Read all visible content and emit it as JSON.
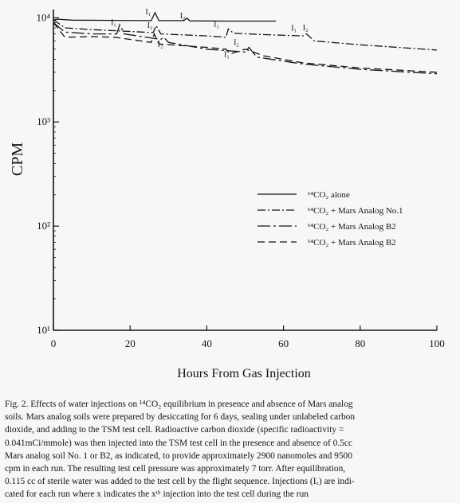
{
  "chart_data": {
    "type": "line",
    "ylabel": "CPM",
    "xlabel": "Hours From Gas Injection",
    "xlim": [
      0,
      100
    ],
    "ylog": true,
    "ylim": [
      10,
      12000
    ],
    "x_ticks": [
      0,
      20,
      40,
      60,
      80,
      100
    ],
    "x_tick_labels": [
      "0",
      "20",
      "40",
      "60",
      "80",
      "100"
    ],
    "y_ticks": [
      10,
      100,
      1000,
      10000
    ],
    "y_tick_labels": [
      "10¹",
      "10²",
      "10³",
      "10⁴"
    ],
    "legend_position": "right-middle",
    "grid": false,
    "series": [
      {
        "name": "¹⁴CO₂ alone",
        "style": "solid",
        "points": [
          [
            0,
            9500
          ],
          [
            1,
            9700
          ],
          [
            5,
            9500
          ],
          [
            15,
            9450
          ],
          [
            25.5,
            9400
          ],
          [
            26.5,
            11200
          ],
          [
            27.5,
            9400
          ],
          [
            34,
            9400
          ],
          [
            34.8,
            9900
          ],
          [
            35.6,
            9350
          ],
          [
            45,
            9300
          ],
          [
            58,
            9300
          ]
        ]
      },
      {
        "name": "¹⁴CO₂ + Mars Analog No.1",
        "style": "dashdot",
        "points": [
          [
            0,
            9600
          ],
          [
            3,
            8000
          ],
          [
            10,
            7700
          ],
          [
            20,
            7400
          ],
          [
            26,
            7200
          ],
          [
            26.8,
            8400
          ],
          [
            28,
            7000
          ],
          [
            40,
            6700
          ],
          [
            45,
            6500
          ],
          [
            45.6,
            7800
          ],
          [
            47,
            7100
          ],
          [
            55,
            6900
          ],
          [
            65,
            6700
          ],
          [
            66,
            7000
          ],
          [
            68,
            6000
          ],
          [
            80,
            5500
          ],
          [
            100,
            4900
          ]
        ]
      },
      {
        "name": "¹⁴CO₂ + Mars Analog B2",
        "style": "longdashdot",
        "points": [
          [
            0,
            9000
          ],
          [
            3,
            7300
          ],
          [
            10,
            7000
          ],
          [
            16.5,
            7000
          ],
          [
            17.3,
            8600
          ],
          [
            18.5,
            7000
          ],
          [
            28,
            6200
          ],
          [
            28.8,
            6500
          ],
          [
            30,
            5800
          ],
          [
            40,
            5000
          ],
          [
            50,
            4700
          ],
          [
            51,
            5200
          ],
          [
            53,
            4200
          ],
          [
            65,
            3600
          ],
          [
            80,
            3200
          ],
          [
            100,
            2900
          ]
        ]
      },
      {
        "name": "¹⁴CO₂ + Mars Analog B2",
        "style": "dashed",
        "points": [
          [
            0,
            9000
          ],
          [
            3,
            6500
          ],
          [
            10,
            6600
          ],
          [
            16,
            6500
          ],
          [
            20,
            6200
          ],
          [
            25.5,
            5800
          ],
          [
            26.3,
            7000
          ],
          [
            27.5,
            5600
          ],
          [
            40,
            5200
          ],
          [
            45,
            5000
          ],
          [
            46,
            4500
          ],
          [
            50,
            5000
          ],
          [
            55,
            4300
          ],
          [
            65,
            3700
          ],
          [
            80,
            3300
          ],
          [
            100,
            3000
          ]
        ]
      }
    ],
    "annotations": [
      "I₁",
      "I₂",
      "I₁",
      "I₂",
      "I₁",
      "I₁",
      "I₂",
      "I₂",
      "I₁",
      "I₂"
    ]
  },
  "caption": {
    "lines": [
      "Fig. 2.  Effects of water injections on ¹⁴CO₂ equilibrium in presence and absence of Mars analog",
      "soils.  Mars analog soils were prepared by desiccating for 6 days, sealing under unlabeled carbon",
      "dioxide, and adding to the TSM test cell.  Radioactive carbon dioxide (specific radioactivity =",
      "0.041mCi/mmole) was then injected into the TSM test cell in the presence and absence of 0.5cc",
      "Mars analog soil No. 1 or B2, as indicated, to provide approximately 2900 nanomoles and 9500",
      "cpm in each run.  The resulting test cell pressure was approximately 7 torr.  After equilibration,",
      "0.115 cc of sterile water was added to the test cell by the flight sequence.  Injections (Iₓ) are indi-",
      "cated for each run where x indicates the xᵗʰ injection into the test cell during the run"
    ]
  }
}
